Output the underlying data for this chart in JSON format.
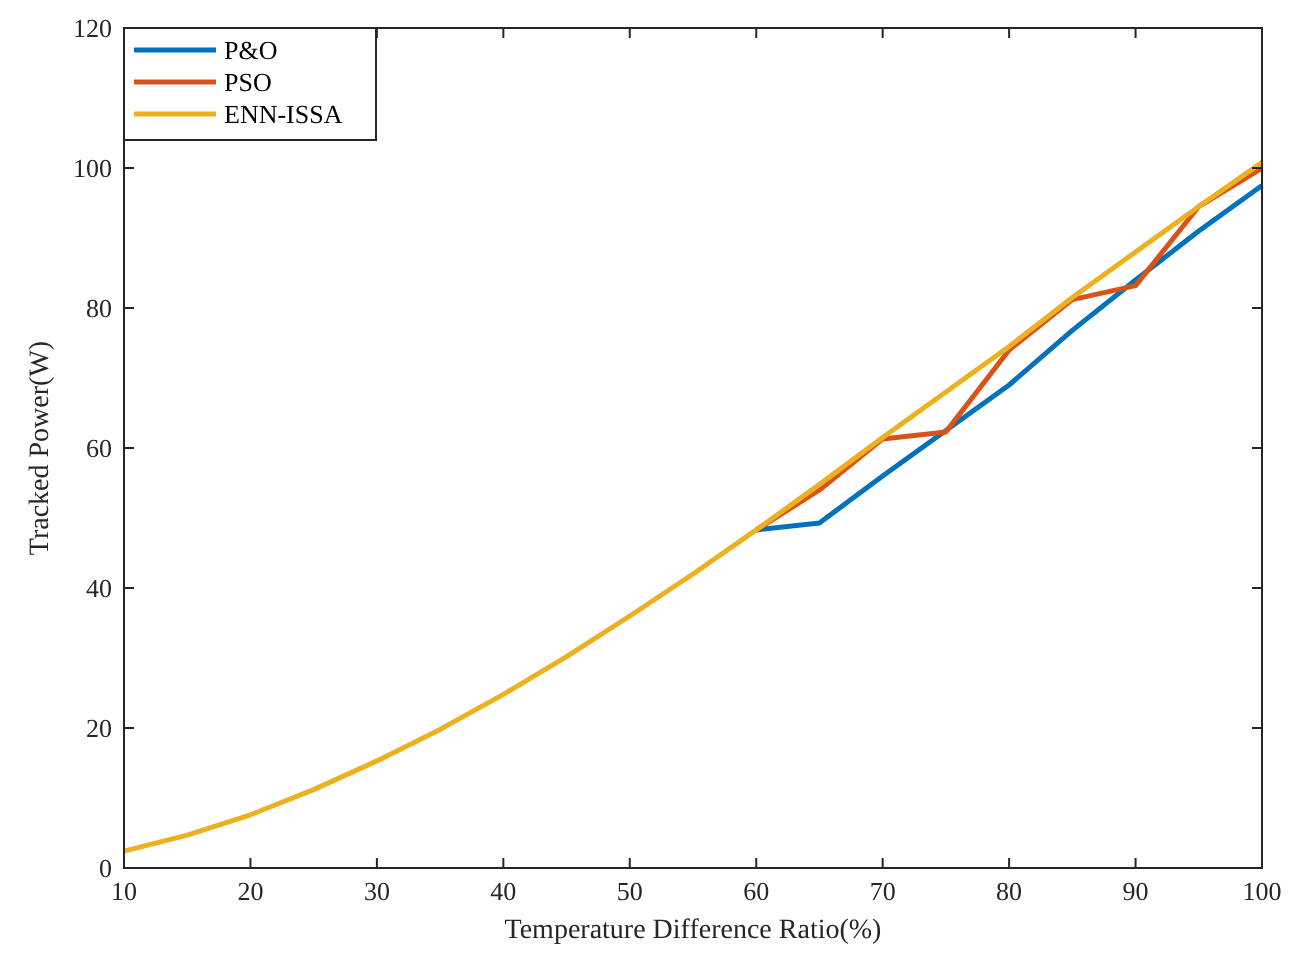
{
  "chart_data": {
    "type": "line",
    "xlabel": "Temperature Difference Ratio(%)",
    "ylabel": "Tracked Power(W)",
    "x": [
      10,
      15,
      20,
      25,
      30,
      35,
      40,
      45,
      50,
      55,
      60,
      65,
      70,
      75,
      80,
      85,
      90,
      95,
      100
    ],
    "series": [
      {
        "name": "P&O",
        "color": "#0072bd",
        "values": [
          null,
          null,
          null,
          null,
          null,
          null,
          null,
          null,
          null,
          null,
          48.3,
          49.3,
          56.0,
          62.5,
          69.0,
          76.8,
          84.0,
          91.0,
          97.5
        ]
      },
      {
        "name": "PSO",
        "color": "#d95319",
        "values": [
          null,
          null,
          null,
          null,
          null,
          null,
          null,
          null,
          null,
          null,
          48.3,
          54.0,
          61.3,
          62.3,
          74.0,
          81.2,
          83.2,
          94.5,
          100.0
        ]
      },
      {
        "name": "ENN-ISSA",
        "color": "#edb120",
        "values": [
          2.4,
          4.7,
          7.6,
          11.2,
          15.3,
          19.8,
          24.8,
          30.2,
          36.0,
          42.0,
          48.3,
          54.8,
          61.5,
          68.0,
          74.5,
          81.5,
          88.0,
          94.5,
          100.8
        ]
      }
    ],
    "xlim": [
      10,
      100
    ],
    "xticks": [
      10,
      20,
      30,
      40,
      50,
      60,
      70,
      80,
      90,
      100
    ],
    "ylim": [
      0,
      120
    ],
    "yticks": [
      0,
      20,
      40,
      60,
      80,
      100,
      120
    ],
    "grid": false,
    "legend": "top left",
    "marker": "none",
    "line_style": "solid"
  }
}
